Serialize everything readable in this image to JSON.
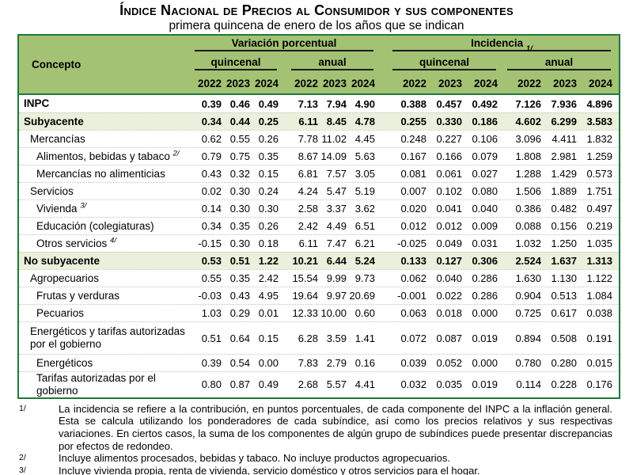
{
  "title": "Índice Nacional de Precios al Consumidor y sus componentes",
  "subtitle": "primera quincena de enero de los años que se indican",
  "colors": {
    "header_green": "#a4c274",
    "border_green": "#1e7a3a",
    "highlight_row": "#eaf0db",
    "row_separator": "#bfc8ad"
  },
  "table": {
    "concept_header": "Concepto",
    "groups": [
      {
        "label": "Variación porcentual",
        "sup": ""
      },
      {
        "label": "Incidencia",
        "sup": "1/"
      }
    ],
    "subgroups": [
      "quincenal",
      "anual",
      "quincenal",
      "anual"
    ],
    "years": [
      "2022",
      "2023",
      "2024",
      "2022",
      "2023",
      "2024",
      "2022",
      "2023",
      "2024",
      "2022",
      "2023",
      "2024"
    ],
    "rows": [
      {
        "label": "INPC",
        "sup": "",
        "indent": 0,
        "bold": true,
        "highlight": false,
        "tall": false,
        "values": [
          "0.39",
          "0.46",
          "0.49",
          "7.13",
          "7.94",
          "4.90",
          "0.388",
          "0.457",
          "0.492",
          "7.126",
          "7.936",
          "4.896"
        ]
      },
      {
        "label": "Subyacente",
        "sup": "",
        "indent": 0,
        "bold": true,
        "highlight": true,
        "tall": false,
        "values": [
          "0.34",
          "0.44",
          "0.25",
          "6.11",
          "8.45",
          "4.78",
          "0.255",
          "0.330",
          "0.186",
          "4.602",
          "6.299",
          "3.583"
        ]
      },
      {
        "label": "Mercancías",
        "sup": "",
        "indent": 1,
        "bold": false,
        "highlight": false,
        "tall": false,
        "values": [
          "0.62",
          "0.55",
          "0.26",
          "7.78",
          "11.02",
          "4.45",
          "0.248",
          "0.227",
          "0.106",
          "3.096",
          "4.411",
          "1.832"
        ]
      },
      {
        "label": "Alimentos, bebidas y tabaco",
        "sup": "2/",
        "indent": 2,
        "bold": false,
        "highlight": false,
        "tall": false,
        "values": [
          "0.79",
          "0.75",
          "0.35",
          "8.67",
          "14.09",
          "5.63",
          "0.167",
          "0.166",
          "0.079",
          "1.808",
          "2.981",
          "1.259"
        ]
      },
      {
        "label": "Mercancías no alimenticias",
        "sup": "",
        "indent": 2,
        "bold": false,
        "highlight": false,
        "tall": false,
        "values": [
          "0.43",
          "0.32",
          "0.15",
          "6.81",
          "7.57",
          "3.05",
          "0.081",
          "0.061",
          "0.027",
          "1.288",
          "1.429",
          "0.573"
        ]
      },
      {
        "label": "Servicios",
        "sup": "",
        "indent": 1,
        "bold": false,
        "highlight": false,
        "tall": false,
        "values": [
          "0.02",
          "0.30",
          "0.24",
          "4.24",
          "5.47",
          "5.19",
          "0.007",
          "0.102",
          "0.080",
          "1.506",
          "1.889",
          "1.751"
        ]
      },
      {
        "label": "Vivienda",
        "sup": "3/",
        "indent": 2,
        "bold": false,
        "highlight": false,
        "tall": false,
        "values": [
          "0.14",
          "0.30",
          "0.30",
          "2.58",
          "3.37",
          "3.62",
          "0.020",
          "0.041",
          "0.040",
          "0.386",
          "0.482",
          "0.497"
        ]
      },
      {
        "label": "Educación (colegiaturas)",
        "sup": "",
        "indent": 2,
        "bold": false,
        "highlight": false,
        "tall": false,
        "values": [
          "0.34",
          "0.35",
          "0.26",
          "2.42",
          "4.49",
          "6.51",
          "0.012",
          "0.012",
          "0.009",
          "0.088",
          "0.156",
          "0.219"
        ]
      },
      {
        "label": "Otros servicios",
        "sup": "4/",
        "indent": 2,
        "bold": false,
        "highlight": false,
        "tall": false,
        "values": [
          "-0.15",
          "0.30",
          "0.18",
          "6.11",
          "7.47",
          "6.21",
          "-0.025",
          "0.049",
          "0.031",
          "1.032",
          "1.250",
          "1.035"
        ]
      },
      {
        "label": "No subyacente",
        "sup": "",
        "indent": 0,
        "bold": true,
        "highlight": true,
        "tall": false,
        "values": [
          "0.53",
          "0.51",
          "1.22",
          "10.21",
          "6.44",
          "5.24",
          "0.133",
          "0.127",
          "0.306",
          "2.524",
          "1.637",
          "1.313"
        ]
      },
      {
        "label": "Agropecuarios",
        "sup": "",
        "indent": 1,
        "bold": false,
        "highlight": false,
        "tall": false,
        "values": [
          "0.55",
          "0.35",
          "2.42",
          "15.54",
          "9.99",
          "9.73",
          "0.062",
          "0.040",
          "0.286",
          "1.630",
          "1.130",
          "1.122"
        ]
      },
      {
        "label": "Frutas y verduras",
        "sup": "",
        "indent": 2,
        "bold": false,
        "highlight": false,
        "tall": false,
        "values": [
          "-0.03",
          "0.43",
          "4.95",
          "19.64",
          "9.97",
          "20.69",
          "-0.001",
          "0.022",
          "0.286",
          "0.904",
          "0.513",
          "1.084"
        ]
      },
      {
        "label": "Pecuarios",
        "sup": "",
        "indent": 2,
        "bold": false,
        "highlight": false,
        "tall": false,
        "values": [
          "1.03",
          "0.29",
          "0.01",
          "12.33",
          "10.00",
          "0.60",
          "0.063",
          "0.018",
          "0.000",
          "0.725",
          "0.617",
          "0.038"
        ]
      },
      {
        "label": "Energéticos y tarifas autorizadas por el gobierno",
        "sup": "",
        "indent": 1,
        "bold": false,
        "highlight": false,
        "tall": true,
        "values": [
          "0.51",
          "0.64",
          "0.15",
          "6.28",
          "3.59",
          "1.41",
          "0.072",
          "0.087",
          "0.019",
          "0.894",
          "0.508",
          "0.191"
        ]
      },
      {
        "label": "Energéticos",
        "sup": "",
        "indent": 2,
        "bold": false,
        "highlight": false,
        "tall": false,
        "values": [
          "0.39",
          "0.54",
          "0.00",
          "7.83",
          "2.79",
          "0.16",
          "0.039",
          "0.052",
          "0.000",
          "0.780",
          "0.280",
          "0.015"
        ]
      },
      {
        "label": "Tarifas autorizadas por el gobierno",
        "sup": "",
        "indent": 2,
        "bold": false,
        "highlight": false,
        "tall": false,
        "values": [
          "0.80",
          "0.87",
          "0.49",
          "2.68",
          "5.57",
          "4.41",
          "0.032",
          "0.035",
          "0.019",
          "0.114",
          "0.228",
          "0.176"
        ]
      }
    ]
  },
  "footnotes": [
    {
      "marker": "1/",
      "justify": true,
      "text": "La incidencia se refiere a la contribución, en puntos porcentuales, de cada componente del INPC a la inflación general. Esta se calcula utilizando los ponderadores de cada subíndice, así como los precios relativos y sus respectivas variaciones. En ciertos casos, la suma de los componentes de algún grupo de subíndices puede presentar discrepancias por efectos de redondeo."
    },
    {
      "marker": "2/",
      "justify": false,
      "text": "Incluye alimentos procesados, bebidas y tabaco. No incluye productos agropecuarios."
    },
    {
      "marker": "3/",
      "justify": false,
      "text": "Incluye vivienda propia, renta de vivienda, servicio doméstico y otros servicios para el hogar."
    },
    {
      "marker": "4/",
      "justify": false,
      "text": "Incluye loncherías, fondas y taquerías, restaurantes y similares, servicio de telefonía móvil, mantenimiento de automóvil,"
    }
  ]
}
